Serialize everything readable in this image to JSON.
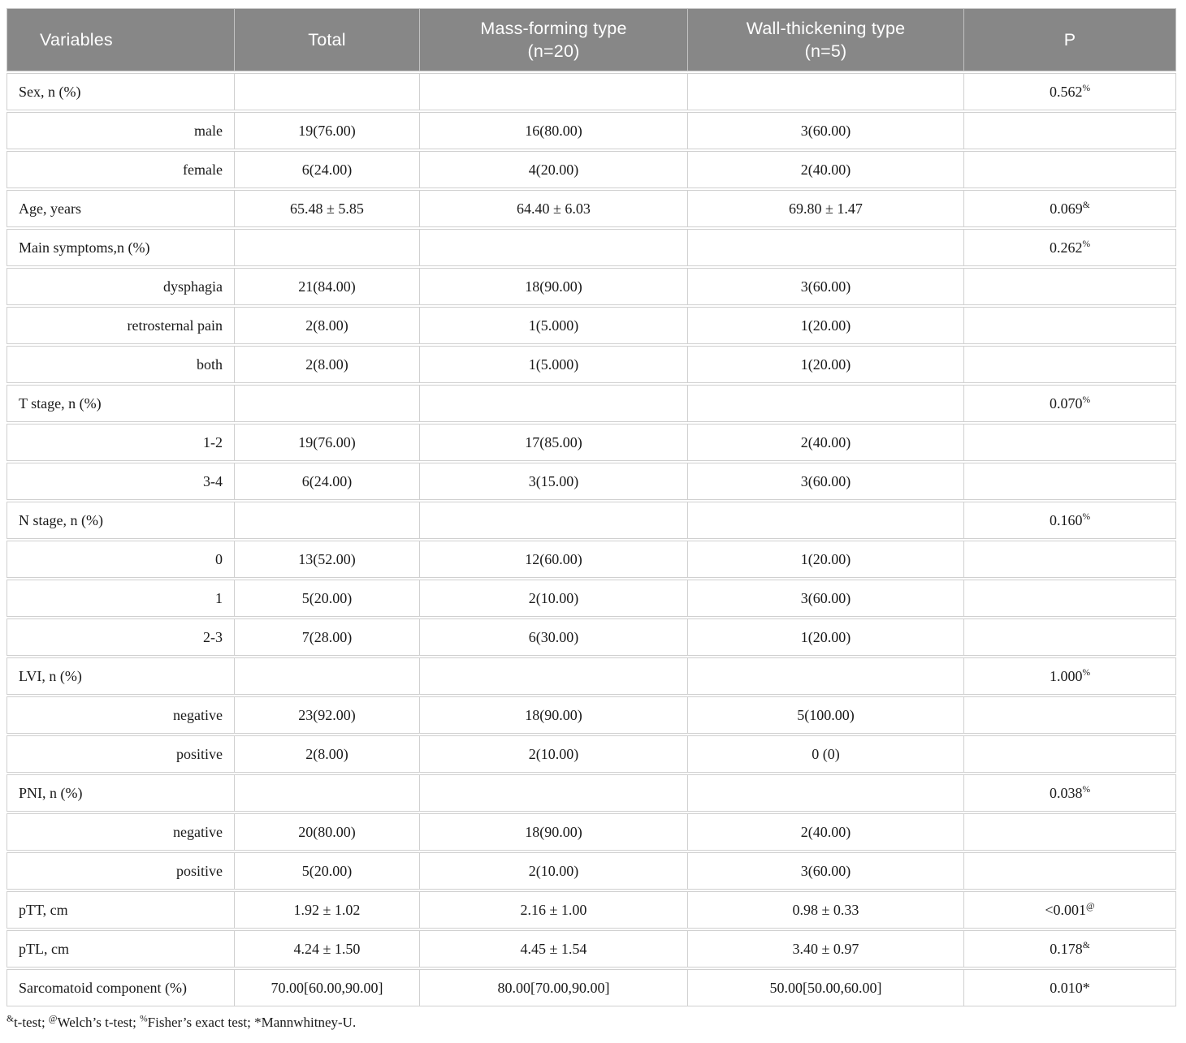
{
  "table": {
    "columns": [
      {
        "label": "Variables",
        "sub": ""
      },
      {
        "label": "Total",
        "sub": ""
      },
      {
        "label": "Mass-forming type",
        "sub": "(n=20)"
      },
      {
        "label": "Wall-thickening type",
        "sub": "(n=5)"
      },
      {
        "label": "P",
        "sub": ""
      }
    ],
    "rows": [
      {
        "label": "Sex, n (%)",
        "indent": false,
        "total": "",
        "mass": "",
        "wall": "",
        "p": "0.562",
        "psup": "%"
      },
      {
        "label": "male",
        "indent": true,
        "total": "19(76.00)",
        "mass": "16(80.00)",
        "wall": "3(60.00)",
        "p": "",
        "psup": ""
      },
      {
        "label": "female",
        "indent": true,
        "total": "6(24.00)",
        "mass": "4(20.00)",
        "wall": "2(40.00)",
        "p": "",
        "psup": ""
      },
      {
        "label": "Age, years",
        "indent": false,
        "total": "65.48 ± 5.85",
        "mass": "64.40 ± 6.03",
        "wall": "69.80 ± 1.47",
        "p": "0.069",
        "psup": "&"
      },
      {
        "label": "Main symptoms,n (%)",
        "indent": false,
        "total": "",
        "mass": "",
        "wall": "",
        "p": "0.262",
        "psup": "%"
      },
      {
        "label": "dysphagia",
        "indent": true,
        "total": "21(84.00)",
        "mass": "18(90.00)",
        "wall": "3(60.00)",
        "p": "",
        "psup": ""
      },
      {
        "label": "retrosternal pain",
        "indent": true,
        "total": "2(8.00)",
        "mass": "1(5.000)",
        "wall": "1(20.00)",
        "p": "",
        "psup": ""
      },
      {
        "label": "both",
        "indent": true,
        "total": "2(8.00)",
        "mass": "1(5.000)",
        "wall": "1(20.00)",
        "p": "",
        "psup": ""
      },
      {
        "label": "T stage, n (%)",
        "indent": false,
        "total": "",
        "mass": "",
        "wall": "",
        "p": "0.070",
        "psup": "%"
      },
      {
        "label": "1-2",
        "indent": true,
        "total": "19(76.00)",
        "mass": "17(85.00)",
        "wall": "2(40.00)",
        "p": "",
        "psup": ""
      },
      {
        "label": "3-4",
        "indent": true,
        "total": "6(24.00)",
        "mass": "3(15.00)",
        "wall": "3(60.00)",
        "p": "",
        "psup": ""
      },
      {
        "label": "N stage, n (%)",
        "indent": false,
        "total": "",
        "mass": "",
        "wall": "",
        "p": "0.160",
        "psup": "%"
      },
      {
        "label": "0",
        "indent": true,
        "total": "13(52.00)",
        "mass": "12(60.00)",
        "wall": "1(20.00)",
        "p": "",
        "psup": ""
      },
      {
        "label": "1",
        "indent": true,
        "total": "5(20.00)",
        "mass": "2(10.00)",
        "wall": "3(60.00)",
        "p": "",
        "psup": ""
      },
      {
        "label": "2-3",
        "indent": true,
        "total": "7(28.00)",
        "mass": "6(30.00)",
        "wall": "1(20.00)",
        "p": "",
        "psup": ""
      },
      {
        "label": "LVI, n (%)",
        "indent": false,
        "total": "",
        "mass": "",
        "wall": "",
        "p": "1.000",
        "psup": "%"
      },
      {
        "label": "negative",
        "indent": true,
        "total": "23(92.00)",
        "mass": "18(90.00)",
        "wall": "5(100.00)",
        "p": "",
        "psup": ""
      },
      {
        "label": "positive",
        "indent": true,
        "total": "2(8.00)",
        "mass": "2(10.00)",
        "wall": "0 (0)",
        "p": "",
        "psup": ""
      },
      {
        "label": "PNI, n (%)",
        "indent": false,
        "total": "",
        "mass": "",
        "wall": "",
        "p": "0.038",
        "psup": "%"
      },
      {
        "label": "negative",
        "indent": true,
        "total": "20(80.00)",
        "mass": "18(90.00)",
        "wall": "2(40.00)",
        "p": "",
        "psup": ""
      },
      {
        "label": "positive",
        "indent": true,
        "total": "5(20.00)",
        "mass": "2(10.00)",
        "wall": "3(60.00)",
        "p": "",
        "psup": ""
      },
      {
        "label": "pTT, cm",
        "indent": false,
        "total": "1.92 ± 1.02",
        "mass": "2.16 ± 1.00",
        "wall": "0.98 ± 0.33",
        "p": "<0.001",
        "psup": "@"
      },
      {
        "label": "pTL, cm",
        "indent": false,
        "total": "4.24 ± 1.50",
        "mass": "4.45 ± 1.54",
        "wall": "3.40 ± 0.97",
        "p": "0.178",
        "psup": "&"
      },
      {
        "label": "Sarcomatoid component (%)",
        "indent": false,
        "total": "70.00[60.00,90.00]",
        "mass": "80.00[70.00,90.00]",
        "wall": "50.00[50.00,60.00]",
        "p": "0.010*",
        "psup": ""
      }
    ]
  },
  "footnote": {
    "segments": [
      {
        "sup": "&",
        "text": "t-test; "
      },
      {
        "sup": "@",
        "text": "Welch’s t-test; "
      },
      {
        "sup": "%",
        "text": "Fisher’s exact test; "
      },
      {
        "sup": "",
        "text": "*Mannwhitney-U."
      }
    ]
  },
  "colors": {
    "header_bg": "#878787",
    "header_text": "#ffffff",
    "cell_border": "#d0d0d0",
    "body_text": "#1a1a1a"
  }
}
